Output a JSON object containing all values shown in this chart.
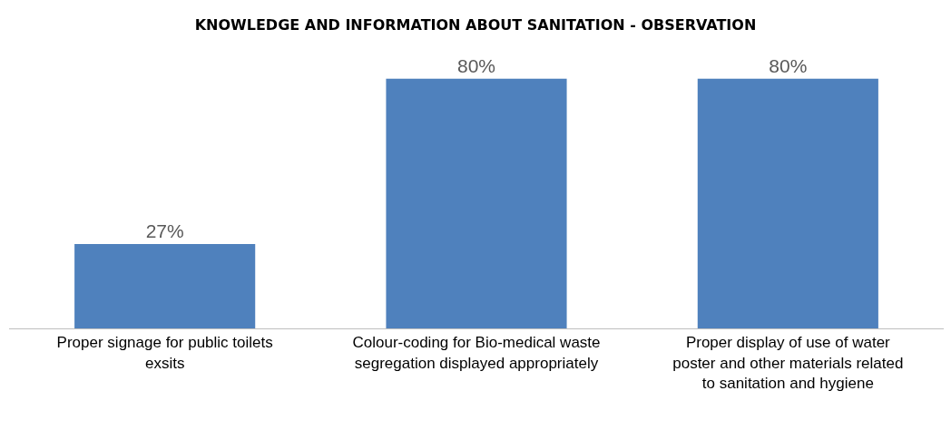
{
  "chart_data": {
    "type": "bar",
    "title": "KNOWLEDGE AND INFORMATION ABOUT SANITATION - OBSERVATION",
    "categories": [
      "Proper signage for public toilets exsits",
      "Colour-coding for Bio-medical waste segregation displayed appropriately",
      "Proper display of use of water poster and other materials related to sanitation and hygiene"
    ],
    "values": [
      27,
      80,
      80
    ],
    "color": "#4f81bd",
    "value_labels": [
      "27%",
      "80%",
      "80%"
    ]
  }
}
